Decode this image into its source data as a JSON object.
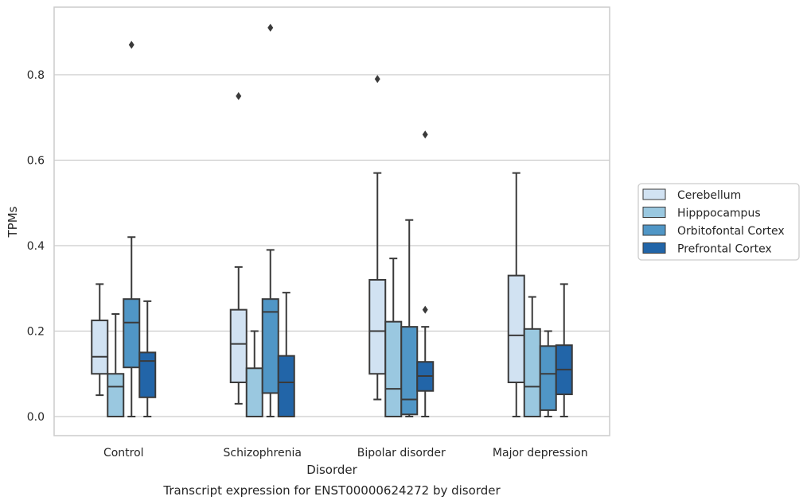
{
  "chart_data": {
    "type": "boxplot",
    "title": "",
    "caption": "Transcript expression for ENST00000624272 by disorder",
    "xlabel": "Disorder",
    "ylabel": "TPMs",
    "ylim": [
      -0.045,
      0.955
    ],
    "yticks": [
      0.0,
      0.2,
      0.4,
      0.6,
      0.8
    ],
    "ytick_labels": [
      "0.0",
      "0.2",
      "0.4",
      "0.6",
      "0.8"
    ],
    "categories": [
      "Control",
      "Schizophrenia",
      "Bipolar disorder",
      "Major depression"
    ],
    "grid": "horizontal",
    "legend_position": "right",
    "series": [
      {
        "name": "Cerebellum",
        "color": "#d1e2f2",
        "boxes": [
          {
            "min": 0.05,
            "q1": 0.1,
            "median": 0.14,
            "q3": 0.225,
            "max": 0.31,
            "outliers": []
          },
          {
            "min": 0.03,
            "q1": 0.08,
            "median": 0.17,
            "q3": 0.25,
            "max": 0.35,
            "outliers": [
              0.75
            ]
          },
          {
            "min": 0.04,
            "q1": 0.1,
            "median": 0.2,
            "q3": 0.32,
            "max": 0.57,
            "outliers": [
              0.79
            ]
          },
          {
            "min": 0.0,
            "q1": 0.08,
            "median": 0.19,
            "q3": 0.33,
            "max": 0.57,
            "outliers": []
          }
        ]
      },
      {
        "name": "Hipppocampus",
        "color": "#9ac8e0",
        "boxes": [
          {
            "min": 0.0,
            "q1": 0.0,
            "median": 0.07,
            "q3": 0.1,
            "max": 0.24,
            "outliers": []
          },
          {
            "min": 0.0,
            "q1": 0.0,
            "median": 0.0,
            "q3": 0.113,
            "max": 0.2,
            "outliers": []
          },
          {
            "min": 0.0,
            "q1": 0.0,
            "median": 0.065,
            "q3": 0.222,
            "max": 0.37,
            "outliers": []
          },
          {
            "min": 0.0,
            "q1": 0.0,
            "median": 0.07,
            "q3": 0.205,
            "max": 0.28,
            "outliers": []
          }
        ]
      },
      {
        "name": "Orbitofontal Cortex",
        "color": "#5096c6",
        "boxes": [
          {
            "min": 0.0,
            "q1": 0.115,
            "median": 0.22,
            "q3": 0.275,
            "max": 0.42,
            "outliers": [
              0.87
            ]
          },
          {
            "min": 0.0,
            "q1": 0.055,
            "median": 0.245,
            "q3": 0.275,
            "max": 0.39,
            "outliers": [
              0.91
            ]
          },
          {
            "min": 0.0,
            "q1": 0.005,
            "median": 0.04,
            "q3": 0.21,
            "max": 0.46,
            "outliers": []
          },
          {
            "min": 0.0,
            "q1": 0.015,
            "median": 0.1,
            "q3": 0.165,
            "max": 0.2,
            "outliers": []
          }
        ]
      },
      {
        "name": "Prefrontal Cortex",
        "color": "#2265a8",
        "boxes": [
          {
            "min": 0.0,
            "q1": 0.045,
            "median": 0.13,
            "q3": 0.15,
            "max": 0.27,
            "outliers": []
          },
          {
            "min": 0.0,
            "q1": 0.0,
            "median": 0.08,
            "q3": 0.142,
            "max": 0.29,
            "outliers": []
          },
          {
            "min": 0.0,
            "q1": 0.06,
            "median": 0.095,
            "q3": 0.128,
            "max": 0.21,
            "outliers": [
              0.25,
              0.66
            ]
          },
          {
            "min": 0.0,
            "q1": 0.052,
            "median": 0.11,
            "q3": 0.167,
            "max": 0.31,
            "outliers": []
          }
        ]
      }
    ]
  }
}
